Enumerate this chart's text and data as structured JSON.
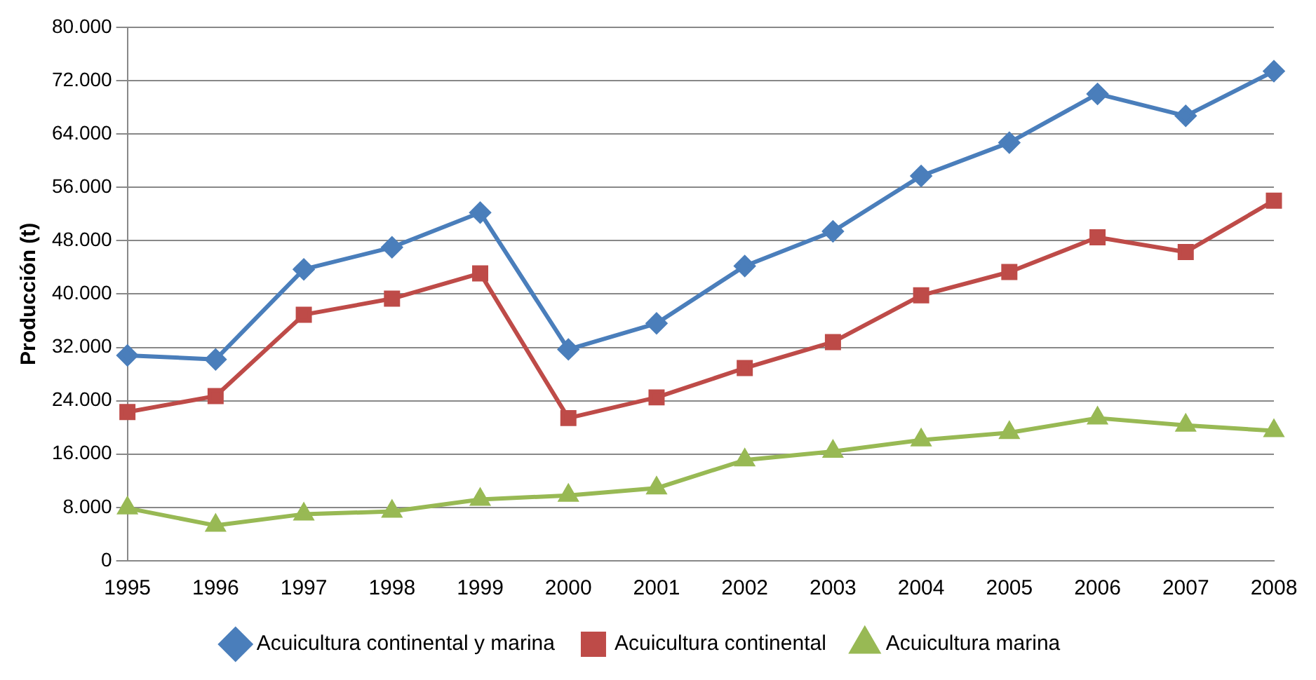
{
  "chart_data": {
    "type": "line",
    "ylabel": "Producción (t)",
    "categories": [
      "1995",
      "1996",
      "1997",
      "1998",
      "1999",
      "2000",
      "2001",
      "2002",
      "2003",
      "2004",
      "2005",
      "2006",
      "2007",
      "2008"
    ],
    "series": [
      {
        "name": "Acuicultura continental y marina",
        "color": "#4a7ebb",
        "marker": "diamond",
        "values": [
          30800,
          30200,
          43700,
          47000,
          52200,
          31700,
          35600,
          44200,
          49400,
          57700,
          62700,
          70000,
          66700,
          73400
        ]
      },
      {
        "name": "Acuicultura continental",
        "color": "#be4b48",
        "marker": "square",
        "values": [
          22300,
          24700,
          36900,
          39300,
          43100,
          21400,
          24500,
          28900,
          32800,
          39800,
          43300,
          48500,
          46300,
          54000
        ]
      },
      {
        "name": "Acuicultura marina",
        "color": "#98b954",
        "marker": "triangle",
        "values": [
          7900,
          5300,
          7000,
          7400,
          9200,
          9800,
          10900,
          15100,
          16400,
          18100,
          19200,
          21400,
          20300,
          19500
        ]
      }
    ],
    "ylim": [
      0,
      80000
    ],
    "yticks": [
      {
        "value": 0,
        "label": "0"
      },
      {
        "value": 8000,
        "label": "8.000"
      },
      {
        "value": 16000,
        "label": "16.000"
      },
      {
        "value": 24000,
        "label": "24.000"
      },
      {
        "value": 32000,
        "label": "32.000"
      },
      {
        "value": 40000,
        "label": "40.000"
      },
      {
        "value": 48000,
        "label": "48.000"
      },
      {
        "value": 56000,
        "label": "56.000"
      },
      {
        "value": 64000,
        "label": "64.000"
      },
      {
        "value": 72000,
        "label": "72.000"
      },
      {
        "value": 80000,
        "label": "80.000"
      }
    ],
    "grid": "y",
    "legend": "bottom"
  }
}
